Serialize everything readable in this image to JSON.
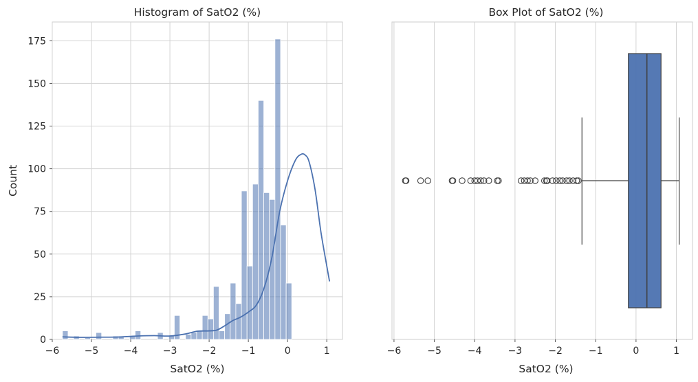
{
  "chart_data": [
    {
      "type": "histogram",
      "title": "Histogram of SatO2 (%)",
      "xlabel": "SatO2 (%)",
      "ylabel": "Count",
      "xlim": [
        -6.0,
        1.4
      ],
      "ylim": [
        0,
        186
      ],
      "xticks": [
        -6,
        -5,
        -4,
        -3,
        -2,
        -1,
        0,
        1
      ],
      "xtick_labels": [
        "−6",
        "−5",
        "−4",
        "−3",
        "−2",
        "−1",
        "0",
        "1"
      ],
      "yticks": [
        0,
        25,
        50,
        75,
        100,
        125,
        150,
        175
      ],
      "ytick_labels": [
        "0",
        "25",
        "50",
        "75",
        "100",
        "125",
        "150",
        "175"
      ],
      "grid": true,
      "bar_color": "#4c72b0",
      "bar_opacity": 0.55,
      "kde_color": "#4c72b0",
      "bin_start": -5.74,
      "bin_width": 0.1426,
      "counts": [
        5,
        0,
        2,
        0,
        1,
        0,
        4,
        0,
        0,
        2,
        2,
        0,
        2,
        5,
        0,
        0,
        0,
        4,
        0,
        2,
        14,
        0,
        3,
        4,
        5,
        14,
        12,
        31,
        5,
        15,
        33,
        21,
        87,
        43,
        91,
        140,
        86,
        82,
        176,
        67,
        33
      ],
      "kde": {
        "x": [
          -5.74,
          -5.3,
          -4.8,
          -4.3,
          -3.8,
          -3.4,
          -3.0,
          -2.6,
          -2.3,
          -2.0,
          -1.8,
          -1.6,
          -1.4,
          -1.2,
          -1.0,
          -0.8,
          -0.6,
          -0.4,
          -0.2,
          0.0,
          0.2,
          0.35,
          0.45,
          0.55,
          0.7,
          0.85,
          1.0,
          1.07
        ],
        "y": [
          1.5,
          1.2,
          1.3,
          1.4,
          2.0,
          2.2,
          2.0,
          3.2,
          4.8,
          5.0,
          5.5,
          8.0,
          11.0,
          13.0,
          16.0,
          20.0,
          30.0,
          48.0,
          75.0,
          93.0,
          105.0,
          108.5,
          108.0,
          104.0,
          88.0,
          63.0,
          43.0,
          34.0
        ]
      }
    },
    {
      "type": "box",
      "title": "Box Plot of SatO2 (%)",
      "xlabel": "SatO2 (%)",
      "xlim": [
        -6.05,
        1.4
      ],
      "xticks": [
        -6,
        -5,
        -4,
        -3,
        -2,
        -1,
        0,
        1
      ],
      "xtick_labels": [
        "−6",
        "−5",
        "−4",
        "−3",
        "−2",
        "−1",
        "0",
        "1"
      ],
      "grid": true,
      "box_color": "#4c72b0",
      "q1": -0.19,
      "median": 0.27,
      "q3": 0.62,
      "whisker_low": -1.34,
      "whisker_high": 1.07,
      "outliers": [
        -5.72,
        -5.7,
        -5.34,
        -5.16,
        -4.56,
        -4.54,
        -4.31,
        -4.1,
        -4.0,
        -3.93,
        -3.85,
        -3.77,
        -3.65,
        -3.44,
        -3.41,
        -2.85,
        -2.77,
        -2.69,
        -2.62,
        -2.5,
        -2.27,
        -2.22,
        -2.2,
        -2.07,
        -1.98,
        -1.89,
        -1.82,
        -1.72,
        -1.65,
        -1.56,
        -1.47,
        -1.43
      ]
    }
  ]
}
